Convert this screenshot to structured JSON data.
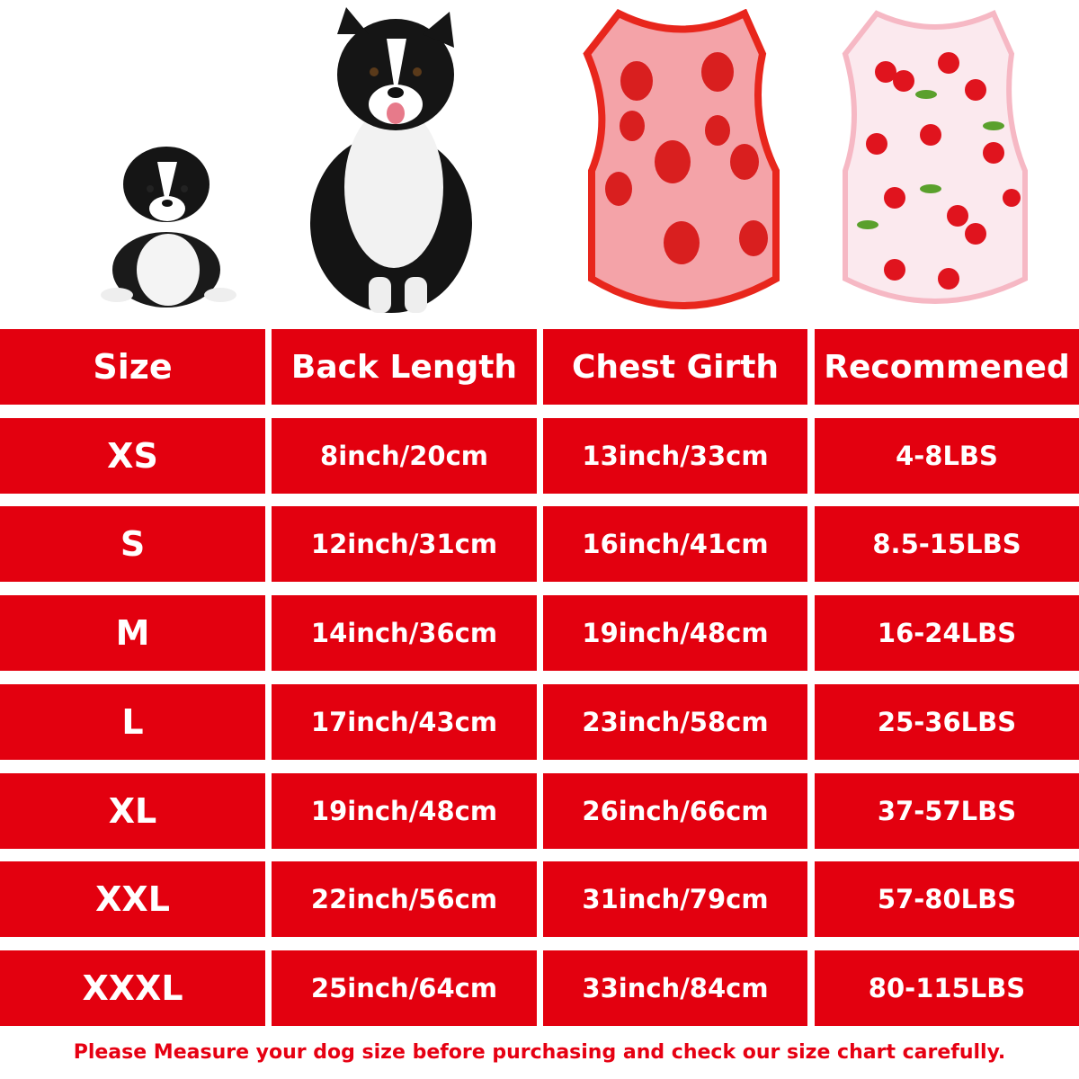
{
  "images": {
    "puppy": "border collie puppy",
    "adult_dog": "border collie adult dog",
    "shirt_strawberry": "pink strawberry print dog shirt",
    "shirt_cherry": "white cherry print dog shirt"
  },
  "colors": {
    "table_red": "#e3000f",
    "footer_red": "#e60012",
    "strawberry_shirt": "#f4a3a8",
    "cherry_shirt": "#fbe9ee"
  },
  "table": {
    "headers": [
      "Size",
      "Back Length",
      "Chest Girth",
      "Recommened"
    ],
    "rows": [
      [
        "XS",
        "8inch/20cm",
        "13inch/33cm",
        "4-8LBS"
      ],
      [
        "S",
        "12inch/31cm",
        "16inch/41cm",
        "8.5-15LBS"
      ],
      [
        "M",
        "14inch/36cm",
        "19inch/48cm",
        "16-24LBS"
      ],
      [
        "L",
        "17inch/43cm",
        "23inch/58cm",
        "25-36LBS"
      ],
      [
        "XL",
        "19inch/48cm",
        "26inch/66cm",
        "37-57LBS"
      ],
      [
        "XXL",
        "22inch/56cm",
        "31inch/79cm",
        "57-80LBS"
      ],
      [
        "XXXL",
        "25inch/64cm",
        "33inch/84cm",
        "80-115LBS"
      ]
    ]
  },
  "footer": "Please Measure your dog size before purchasing and check our size chart carefully."
}
